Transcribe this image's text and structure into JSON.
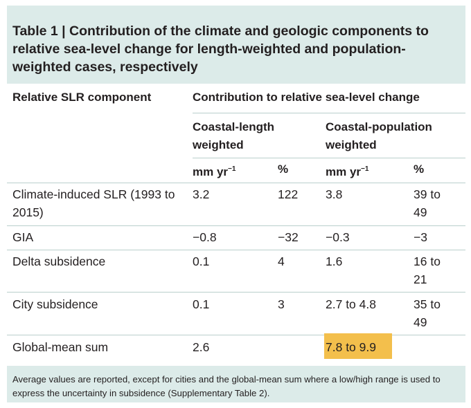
{
  "table": {
    "label": "Table 1 | ",
    "caption": "Contribution of the climate and geologic components to relative sea-level change for length-weighted and population-weighted cases, respectively",
    "header": {
      "component": "Relative SLR component",
      "contribution": "Contribution to relative sea-level change",
      "group_length": "Coastal-length weighted",
      "group_pop": "Coastal-population weighted",
      "unit_rate": "mm yr",
      "unit_rate_exp": "−1",
      "unit_pct": "%"
    },
    "rows": [
      {
        "component": "Climate-induced SLR (1993 to 2015)",
        "len_rate": "3.2",
        "len_pct": "122",
        "pop_rate": "3.8",
        "pop_pct": "39 to 49"
      },
      {
        "component": "GIA",
        "len_rate": "−0.8",
        "len_pct": "−32",
        "pop_rate": "−0.3",
        "pop_pct": "−3"
      },
      {
        "component": "Delta subsidence",
        "len_rate": "0.1",
        "len_pct": "4",
        "pop_rate": "1.6",
        "pop_pct": "16 to 21"
      },
      {
        "component": "City subsidence",
        "len_rate": "0.1",
        "len_pct": "3",
        "pop_rate": "2.7 to 4.8",
        "pop_pct": "35 to 49"
      },
      {
        "component": "Global-mean sum",
        "len_rate": "2.6",
        "len_pct": "",
        "pop_rate": "7.8 to 9.9",
        "pop_pct": ""
      }
    ],
    "footnote": "Average values are reported, except for cities and the global-mean sum where a low/high range is used to express the uncertainty in subsidence (Supplementary Table 2).",
    "highlight_color": "#f3bf4c",
    "band_color": "#dcebe9"
  }
}
